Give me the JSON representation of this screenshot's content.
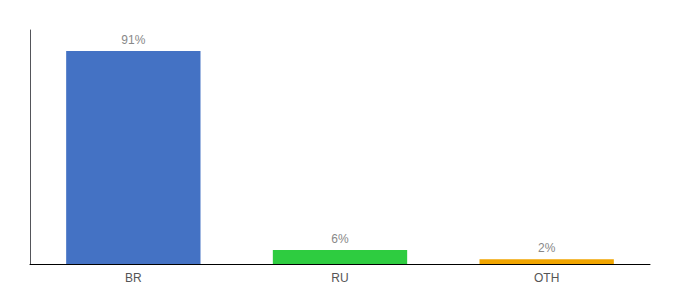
{
  "chart_data": {
    "type": "bar",
    "categories": [
      "BR",
      "RU",
      "OTH"
    ],
    "values": [
      91,
      6,
      2
    ],
    "value_labels": [
      "91%",
      "6%",
      "2%"
    ],
    "colors": [
      "#4472c4",
      "#2ecc40",
      "#f0a500"
    ],
    "ylim": [
      0,
      100
    ],
    "grid": false,
    "data_labels": true,
    "tick_labels": "x"
  }
}
